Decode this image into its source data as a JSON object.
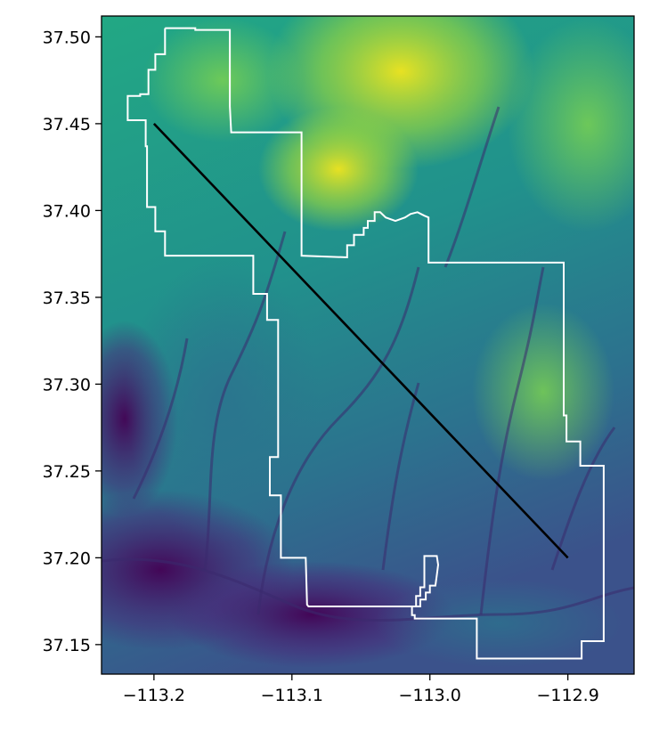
{
  "chart_data": {
    "type": "map",
    "title": "",
    "xlabel": "",
    "ylabel": "",
    "xlim": [
      -113.238,
      -112.852
    ],
    "ylim": [
      37.133,
      37.512
    ],
    "x_ticks": [
      {
        "value": -113.2,
        "label": "−113.2"
      },
      {
        "value": -113.1,
        "label": "−113.1"
      },
      {
        "value": -113.0,
        "label": "−113.0"
      },
      {
        "value": -112.9,
        "label": "−112.9"
      }
    ],
    "y_ticks": [
      {
        "value": 37.15,
        "label": "37.15"
      },
      {
        "value": 37.2,
        "label": "37.20"
      },
      {
        "value": 37.25,
        "label": "37.25"
      },
      {
        "value": 37.3,
        "label": "37.30"
      },
      {
        "value": 37.35,
        "label": "37.35"
      },
      {
        "value": 37.4,
        "label": "37.40"
      },
      {
        "value": 37.45,
        "label": "37.45"
      },
      {
        "value": 37.5,
        "label": "37.50"
      }
    ],
    "raster": {
      "colormap": "viridis",
      "description_colors": [
        "#440154",
        "#3b528b",
        "#21908d",
        "#5dc863",
        "#fde725"
      ]
    },
    "boundary": {
      "color": "#ffffff",
      "points": [
        [
          -113.192,
          37.505
        ],
        [
          -113.17,
          37.505
        ],
        [
          -113.17,
          37.504
        ],
        [
          -113.145,
          37.504
        ],
        [
          -113.145,
          37.46
        ],
        [
          -113.144,
          37.445
        ],
        [
          -113.093,
          37.445
        ],
        [
          -113.093,
          37.374
        ],
        [
          -113.06,
          37.373
        ],
        [
          -113.06,
          37.38
        ],
        [
          -113.055,
          37.38
        ],
        [
          -113.055,
          37.386
        ],
        [
          -113.048,
          37.386
        ],
        [
          -113.048,
          37.39
        ],
        [
          -113.045,
          37.39
        ],
        [
          -113.045,
          37.394
        ],
        [
          -113.04,
          37.394
        ],
        [
          -113.04,
          37.399
        ],
        [
          -113.036,
          37.399
        ],
        [
          -113.032,
          37.396
        ],
        [
          -113.025,
          37.394
        ],
        [
          -113.018,
          37.396
        ],
        [
          -113.014,
          37.398
        ],
        [
          -113.009,
          37.399
        ],
        [
          -113.004,
          37.397
        ],
        [
          -113.001,
          37.396
        ],
        [
          -113.001,
          37.37
        ],
        [
          -112.904,
          37.37
        ],
        [
          -112.903,
          37.37
        ],
        [
          -112.903,
          37.282
        ],
        [
          -112.901,
          37.282
        ],
        [
          -112.901,
          37.267
        ],
        [
          -112.891,
          37.267
        ],
        [
          -112.891,
          37.253
        ],
        [
          -112.874,
          37.253
        ],
        [
          -112.874,
          37.152
        ],
        [
          -112.89,
          37.152
        ],
        [
          -112.89,
          37.142
        ],
        [
          -112.966,
          37.142
        ],
        [
          -112.966,
          37.165
        ],
        [
          -113.011,
          37.165
        ],
        [
          -113.011,
          37.167
        ],
        [
          -113.013,
          37.167
        ],
        [
          -113.013,
          37.172
        ],
        [
          -113.01,
          37.172
        ],
        [
          -113.01,
          37.178
        ],
        [
          -113.007,
          37.178
        ],
        [
          -113.007,
          37.183
        ],
        [
          -113.004,
          37.183
        ],
        [
          -113.004,
          37.201
        ],
        [
          -112.995,
          37.201
        ],
        [
          -112.994,
          37.196
        ],
        [
          -112.995,
          37.19
        ],
        [
          -112.996,
          37.184
        ],
        [
          -113.0,
          37.184
        ],
        [
          -113.0,
          37.18
        ],
        [
          -113.003,
          37.18
        ],
        [
          -113.003,
          37.176
        ],
        [
          -113.007,
          37.176
        ],
        [
          -113.007,
          37.172
        ],
        [
          -113.035,
          37.172
        ],
        [
          -113.045,
          37.172
        ],
        [
          -113.073,
          37.172
        ],
        [
          -113.077,
          37.172
        ],
        [
          -113.088,
          37.172
        ],
        [
          -113.089,
          37.173
        ],
        [
          -113.09,
          37.2
        ],
        [
          -113.108,
          37.2
        ],
        [
          -113.108,
          37.236
        ],
        [
          -113.116,
          37.236
        ],
        [
          -113.116,
          37.258
        ],
        [
          -113.11,
          37.258
        ],
        [
          -113.11,
          37.337
        ],
        [
          -113.118,
          37.337
        ],
        [
          -113.118,
          37.352
        ],
        [
          -113.128,
          37.352
        ],
        [
          -113.128,
          37.374
        ],
        [
          -113.192,
          37.374
        ],
        [
          -113.192,
          37.388
        ],
        [
          -113.199,
          37.388
        ],
        [
          -113.199,
          37.402
        ],
        [
          -113.205,
          37.402
        ],
        [
          -113.205,
          37.437
        ],
        [
          -113.206,
          37.437
        ],
        [
          -113.206,
          37.452
        ],
        [
          -113.219,
          37.452
        ],
        [
          -113.219,
          37.466
        ],
        [
          -113.21,
          37.466
        ],
        [
          -113.21,
          37.467
        ],
        [
          -113.204,
          37.467
        ],
        [
          -113.204,
          37.481
        ],
        [
          -113.199,
          37.481
        ],
        [
          -113.199,
          37.49
        ],
        [
          -113.192,
          37.49
        ],
        [
          -113.192,
          37.505
        ]
      ]
    },
    "transect": {
      "color": "#000000",
      "start": [
        -113.2,
        37.45
      ],
      "end": [
        -112.9,
        37.2
      ]
    }
  }
}
